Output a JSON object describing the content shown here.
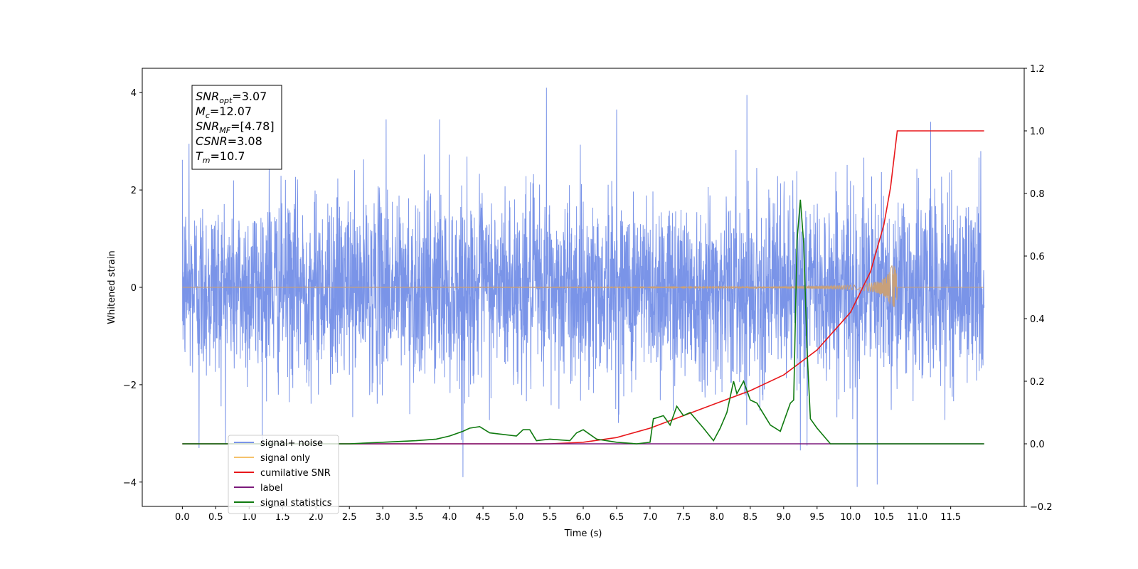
{
  "chart_data": {
    "type": "line",
    "title": "",
    "xlabel": "Time (s)",
    "ylabel": "Whitened strain",
    "xlim": [
      -0.6,
      12.6
    ],
    "ylim": [
      -4.5,
      4.5
    ],
    "y2lim": [
      -0.2,
      1.2
    ],
    "x_ticks": [
      "0.0",
      "0.5",
      "1.0",
      "1.5",
      "2.0",
      "2.5",
      "3.0",
      "3.5",
      "4.0",
      "4.5",
      "5.0",
      "5.5",
      "6.0",
      "6.5",
      "7.0",
      "7.5",
      "8.0",
      "8.5",
      "9.0",
      "9.5",
      "10.0",
      "10.5",
      "11.0",
      "11.5"
    ],
    "y_ticks": [
      "4",
      "2",
      "0",
      "−2",
      "−4"
    ],
    "y2_ticks": [
      "1.2",
      "1.0",
      "0.8",
      "0.6",
      "0.4",
      "0.2",
      "0.0",
      "−0.2"
    ],
    "grid": false,
    "legend_position": "lower-left",
    "annotation": {
      "lines": [
        {
          "base": "SNR",
          "sub": "opt",
          "rest": "=3.07"
        },
        {
          "base": "M",
          "sub": "c",
          "rest": "=12.07"
        },
        {
          "base": "SNR",
          "sub": "MF",
          "rest": "=[4.78]"
        },
        {
          "base": "CSNR",
          "sub": "",
          "rest": "=3.08"
        },
        {
          "base": "T",
          "sub": "m",
          "rest": "=10.7"
        }
      ]
    },
    "series": [
      {
        "name": "signal+ noise",
        "color": "#7a94e8",
        "axis": "left",
        "kind": "noise",
        "x_range": [
          0.0,
          12.0
        ],
        "amplitude_range": [
          -4.1,
          4.1
        ],
        "peak_points": [
          [
            0.1,
            2.95
          ],
          [
            0.25,
            -3.3
          ],
          [
            1.3,
            3.0
          ],
          [
            3.05,
            3.45
          ],
          [
            3.85,
            3.45
          ],
          [
            4.2,
            -3.9
          ],
          [
            5.45,
            4.1
          ],
          [
            6.5,
            3.65
          ],
          [
            8.45,
            3.95
          ],
          [
            9.25,
            -3.35
          ],
          [
            9.35,
            -3.25
          ],
          [
            10.1,
            -4.1
          ],
          [
            10.4,
            -4.05
          ],
          [
            11.2,
            3.4
          ],
          [
            11.95,
            2.8
          ]
        ]
      },
      {
        "name": "signal only",
        "color": "#f5c26b",
        "axis": "left",
        "kind": "chirp",
        "x_range": [
          0.0,
          12.0
        ],
        "merger_time": 10.7,
        "peak_amplitude": 0.45
      },
      {
        "name": "cumilative SNR",
        "color": "#e8171b",
        "axis": "right",
        "x": [
          0.0,
          5.5,
          6.0,
          6.5,
          7.0,
          7.5,
          8.0,
          8.5,
          9.0,
          9.5,
          10.0,
          10.3,
          10.5,
          10.6,
          10.7,
          12.0
        ],
        "y": [
          0.0,
          0.0,
          0.005,
          0.02,
          0.05,
          0.09,
          0.13,
          0.17,
          0.22,
          0.3,
          0.42,
          0.55,
          0.7,
          0.82,
          1.0,
          1.0
        ]
      },
      {
        "name": "label",
        "color": "#7b1a7b",
        "axis": "right",
        "x": [
          0.0,
          12.0
        ],
        "y": [
          0.0,
          0.0
        ]
      },
      {
        "name": "signal statistics",
        "color": "#0f7a0f",
        "axis": "right",
        "x": [
          0.0,
          2.5,
          3.0,
          3.5,
          3.8,
          4.0,
          4.2,
          4.3,
          4.45,
          4.6,
          4.8,
          5.0,
          5.1,
          5.2,
          5.3,
          5.5,
          5.8,
          5.9,
          6.0,
          6.1,
          6.2,
          6.5,
          6.8,
          7.0,
          7.05,
          7.2,
          7.3,
          7.4,
          7.5,
          7.6,
          7.8,
          7.95,
          8.05,
          8.15,
          8.25,
          8.3,
          8.4,
          8.5,
          8.6,
          8.8,
          8.95,
          9.05,
          9.1,
          9.15,
          9.2,
          9.25,
          9.3,
          9.35,
          9.4,
          9.5,
          9.7,
          12.0
        ],
        "y": [
          0.0,
          0.0,
          0.005,
          0.01,
          0.015,
          0.025,
          0.04,
          0.05,
          0.055,
          0.035,
          0.03,
          0.025,
          0.045,
          0.045,
          0.01,
          0.015,
          0.01,
          0.035,
          0.045,
          0.03,
          0.015,
          0.005,
          0.0,
          0.005,
          0.08,
          0.09,
          0.06,
          0.12,
          0.09,
          0.1,
          0.05,
          0.01,
          0.05,
          0.1,
          0.2,
          0.16,
          0.2,
          0.14,
          0.13,
          0.06,
          0.04,
          0.1,
          0.13,
          0.14,
          0.65,
          0.78,
          0.64,
          0.3,
          0.08,
          0.05,
          0.0,
          0.0
        ]
      }
    ]
  }
}
